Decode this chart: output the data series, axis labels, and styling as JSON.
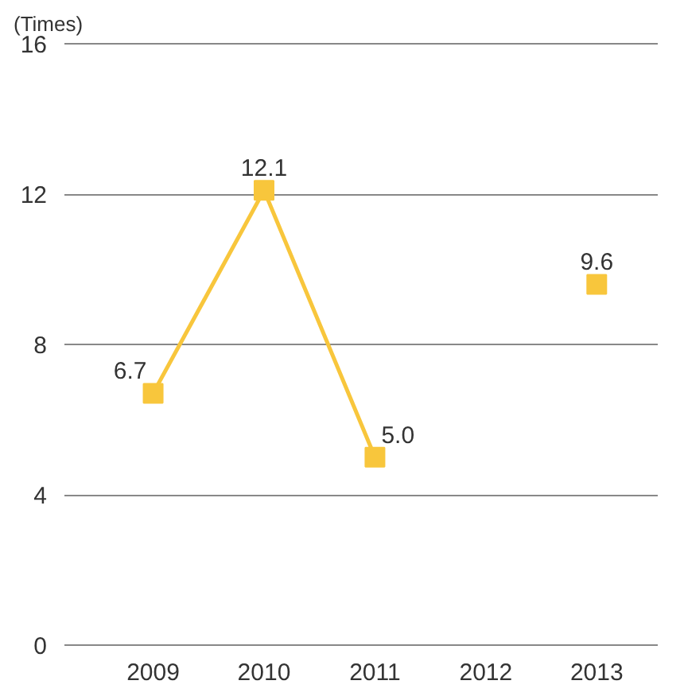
{
  "chart_data": {
    "type": "line",
    "ylabel": "(Times)",
    "categories": [
      "2009",
      "2010",
      "2011",
      "2012",
      "2013"
    ],
    "series": [
      {
        "color": "#f8c63c",
        "values": [
          6.7,
          12.1,
          5.0,
          null,
          9.6
        ],
        "value_labels": [
          "6.7",
          "12.1",
          "5.0",
          null,
          "9.6"
        ]
      }
    ],
    "ylim": [
      0,
      16
    ],
    "yticks": [
      0,
      4,
      8,
      12,
      16
    ],
    "grid": "y",
    "marker": "square",
    "line_style": "solid"
  }
}
